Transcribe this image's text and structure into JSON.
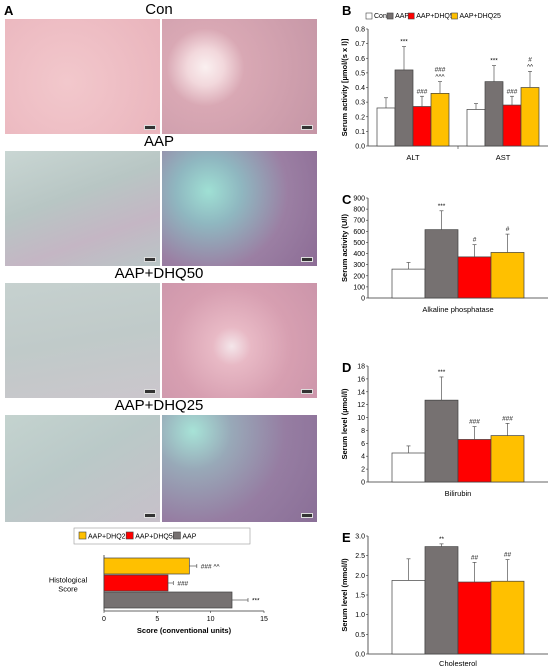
{
  "panels": {
    "A": {
      "letter": "A",
      "micrographs": [
        {
          "group": "Con",
          "tone": "pink"
        },
        {
          "group": "AAP",
          "tone": "teal"
        },
        {
          "group": "AAP+DHQ50",
          "tone": "mixed"
        },
        {
          "group": "AAP+DHQ25",
          "tone": "teal"
        }
      ]
    },
    "B": {
      "letter": "B"
    },
    "C": {
      "letter": "C"
    },
    "D": {
      "letter": "D"
    },
    "E": {
      "letter": "E"
    }
  },
  "colors": {
    "Con": "#ffffff",
    "AAP": "#767171",
    "AAP+DHQ50": "#ff0000",
    "AAP+DHQ25": "#ffc000",
    "bar_edge": "#404040"
  },
  "chart_data": [
    {
      "id": "B",
      "type": "bar",
      "ylabel": "Serum activity [µmol/(s x l)]",
      "ylim": [
        0,
        0.8
      ],
      "yticks": [
        "0.0",
        "0.1",
        "0.2",
        "0.3",
        "0.4",
        "0.5",
        "0.6",
        "0.7",
        "0.8"
      ],
      "categories": [
        "ALT",
        "AST"
      ],
      "legend": [
        "Con",
        "AAP",
        "AAP+DHQ50",
        "AAP+DHQ25"
      ],
      "series": [
        {
          "name": "Con",
          "values": [
            0.26,
            0.25
          ],
          "errors": [
            0.07,
            0.04
          ],
          "annotations": [
            "",
            ""
          ]
        },
        {
          "name": "AAP",
          "values": [
            0.52,
            0.44
          ],
          "errors": [
            0.16,
            0.11
          ],
          "annotations": [
            "***",
            "***"
          ]
        },
        {
          "name": "AAP+DHQ50",
          "values": [
            0.27,
            0.28
          ],
          "errors": [
            0.07,
            0.06
          ],
          "annotations": [
            "###",
            "###"
          ]
        },
        {
          "name": "AAP+DHQ25",
          "values": [
            0.36,
            0.4
          ],
          "errors": [
            0.08,
            0.11
          ],
          "annotations": [
            "###\n^^^",
            "#\n^^"
          ]
        }
      ]
    },
    {
      "id": "C",
      "type": "bar",
      "ylabel": "Serum activity (U/l)",
      "ylim": [
        0,
        900
      ],
      "yticks": [
        "0",
        "100",
        "200",
        "300",
        "400",
        "500",
        "600",
        "700",
        "800",
        "900"
      ],
      "categories": [
        "Alkaline phosphatase"
      ],
      "series": [
        {
          "name": "Con",
          "values": [
            260
          ],
          "errors": [
            60
          ],
          "annotations": [
            ""
          ]
        },
        {
          "name": "AAP",
          "values": [
            615
          ],
          "errors": [
            170
          ],
          "annotations": [
            "***"
          ]
        },
        {
          "name": "AAP+DHQ50",
          "values": [
            370
          ],
          "errors": [
            110
          ],
          "annotations": [
            "#"
          ]
        },
        {
          "name": "AAP+DHQ25",
          "values": [
            410
          ],
          "errors": [
            165
          ],
          "annotations": [
            "#"
          ]
        }
      ]
    },
    {
      "id": "D",
      "type": "bar",
      "ylabel": "Serum level (µmol/l)",
      "ylim": [
        0,
        18
      ],
      "yticks": [
        "0",
        "2",
        "4",
        "6",
        "8",
        "10",
        "12",
        "14",
        "16",
        "18"
      ],
      "categories": [
        "Bilirubin"
      ],
      "series": [
        {
          "name": "Con",
          "values": [
            4.5
          ],
          "errors": [
            1.1
          ],
          "annotations": [
            ""
          ]
        },
        {
          "name": "AAP",
          "values": [
            12.7
          ],
          "errors": [
            3.6
          ],
          "annotations": [
            "***"
          ]
        },
        {
          "name": "AAP+DHQ50",
          "values": [
            6.6
          ],
          "errors": [
            2.0
          ],
          "annotations": [
            "###"
          ]
        },
        {
          "name": "AAP+DHQ25",
          "values": [
            7.2
          ],
          "errors": [
            1.9
          ],
          "annotations": [
            "###"
          ]
        }
      ]
    },
    {
      "id": "E",
      "type": "bar",
      "ylabel": "Serum level (mmol/l)",
      "ylim": [
        0,
        3.0
      ],
      "yticks": [
        "0.0",
        "0.5",
        "1.0",
        "1.5",
        "2.0",
        "2.5",
        "3.0"
      ],
      "categories": [
        "Cholesterol"
      ],
      "series": [
        {
          "name": "Con",
          "values": [
            1.87
          ],
          "errors": [
            0.55
          ],
          "annotations": [
            ""
          ]
        },
        {
          "name": "AAP",
          "values": [
            2.73
          ],
          "errors": [
            0.07
          ],
          "annotations": [
            "**"
          ]
        },
        {
          "name": "AAP+DHQ50",
          "values": [
            1.83
          ],
          "errors": [
            0.5
          ],
          "annotations": [
            "##"
          ]
        },
        {
          "name": "AAP+DHQ25",
          "values": [
            1.85
          ],
          "errors": [
            0.55
          ],
          "annotations": [
            "##"
          ]
        }
      ]
    },
    {
      "id": "A-score",
      "type": "bar",
      "orientation": "horizontal",
      "xlabel": "Score (conventional units)",
      "xlim": [
        0,
        15
      ],
      "xticks": [
        "0",
        "5",
        "10",
        "15"
      ],
      "categories": [
        "Histological Score"
      ],
      "legend": [
        "AAP+DHQ25",
        "AAP+DHQ50",
        "AAP"
      ],
      "series": [
        {
          "name": "AAP+DHQ25",
          "values": [
            8
          ],
          "errors": [
            0.7
          ],
          "annotations": [
            "### ^^"
          ]
        },
        {
          "name": "AAP+DHQ50",
          "values": [
            6
          ],
          "errors": [
            0.5
          ],
          "annotations": [
            "###"
          ]
        },
        {
          "name": "AAP",
          "values": [
            12
          ],
          "errors": [
            1.5
          ],
          "annotations": [
            "***"
          ]
        }
      ]
    }
  ]
}
